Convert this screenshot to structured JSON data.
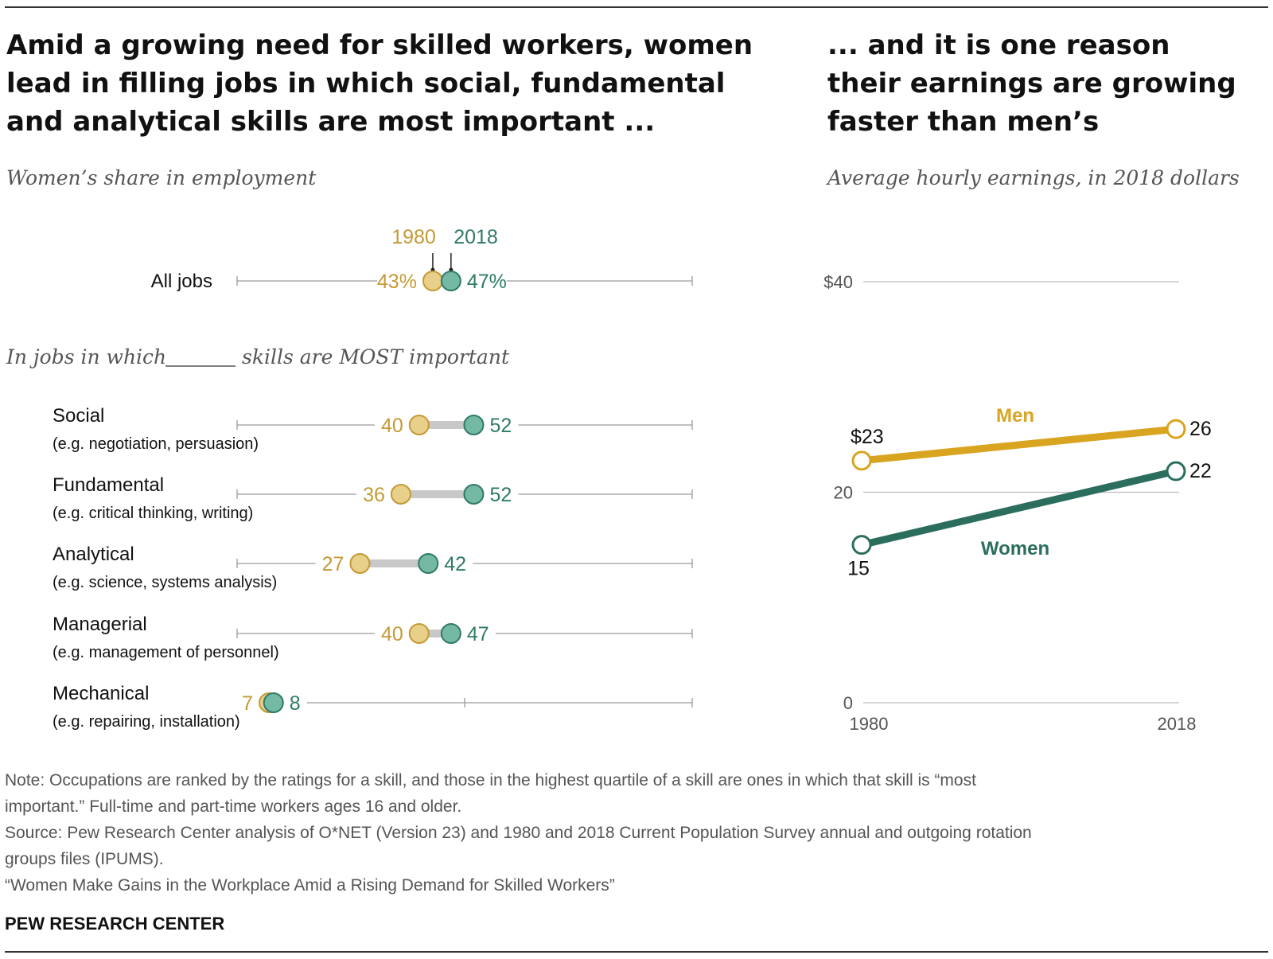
{
  "left": {
    "title_lines": [
      "Amid a growing need for skilled workers, women",
      "lead in filling jobs in which social, fundamental",
      "and analytical skills are most important ..."
    ],
    "subtitle": "Women’s share in employment",
    "year_labels": [
      "1980",
      "2018"
    ],
    "section_label_pre": "In jobs in which",
    "section_label_post": "skills are MOST important"
  },
  "right": {
    "title_lines": [
      "... and it is one reason",
      "their earnings are growing",
      "faster than men’s"
    ],
    "subtitle": "Average hourly earnings, in 2018 dollars"
  },
  "notes": [
    "Note: Occupations are ranked by the ratings for a skill, and those in the highest quartile of a skill are ones in which that skill is “most",
    "important.” Full-time and part-time workers ages 16 and older.",
    "Source: Pew Research Center analysis of O*NET (Version 23) and 1980 and 2018 Current Population Survey annual and outgoing rotation",
    "groups files (IPUMS).",
    "“Women Make Gains in the Workplace Amid a Rising Demand for Skilled Workers”"
  ],
  "brand": "PEW RESEARCH CENTER",
  "colors": {
    "y1980": "#c49a35",
    "y1980_fill": "#e8cf8a",
    "y2018": "#2f7a68",
    "y2018_fill": "#74b9a4",
    "men": "#d9a41f",
    "women": "#2b6e5e"
  },
  "chart_data": [
    {
      "type": "dot-plot",
      "xlim": [
        0,
        100
      ],
      "series": [
        {
          "name": "1980"
        },
        {
          "name": "2018"
        }
      ],
      "rows": [
        {
          "name": "All jobs",
          "example": "",
          "v1980": 43,
          "v2018": 47,
          "label1980": "43%",
          "label2018": "47%"
        },
        {
          "name": "Social",
          "example": "(e.g. negotiation, persuasion)",
          "v1980": 40,
          "v2018": 52,
          "label1980": "40",
          "label2018": "52"
        },
        {
          "name": "Fundamental",
          "example": "(e.g. critical thinking, writing)",
          "v1980": 36,
          "v2018": 52,
          "label1980": "36",
          "label2018": "52"
        },
        {
          "name": "Analytical",
          "example": "(e.g. science, systems analysis)",
          "v1980": 27,
          "v2018": 42,
          "label1980": "27",
          "label2018": "42"
        },
        {
          "name": "Managerial",
          "example": "(e.g. management of personnel)",
          "v1980": 40,
          "v2018": 47,
          "label1980": "40",
          "label2018": "47"
        },
        {
          "name": "Mechanical",
          "example": "(e.g. repairing, installation)",
          "v1980": 7,
          "v2018": 8,
          "label1980": "7",
          "label2018": "8"
        }
      ]
    },
    {
      "type": "line",
      "x": [
        1980,
        2018
      ],
      "ylim": [
        0,
        40
      ],
      "yticks": [
        0,
        20,
        40
      ],
      "ytick_labels": [
        "0",
        "20",
        "$40"
      ],
      "xtick_labels": [
        "1980",
        "2018"
      ],
      "series": [
        {
          "name": "Men",
          "values": [
            23,
            26
          ],
          "labels": [
            "$23",
            "26"
          ]
        },
        {
          "name": "Women",
          "values": [
            15,
            22
          ],
          "labels": [
            "15",
            "22"
          ]
        }
      ]
    }
  ]
}
